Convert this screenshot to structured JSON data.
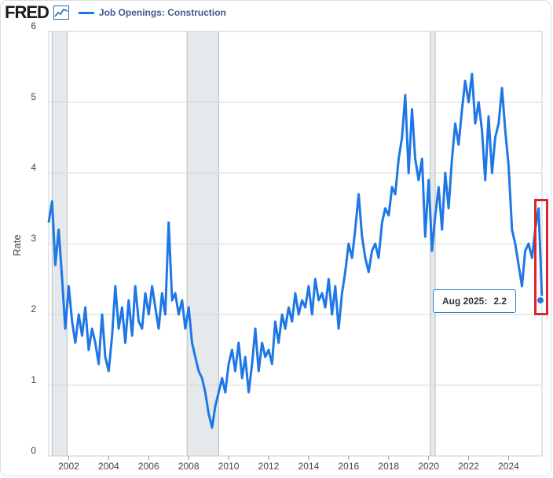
{
  "header": {
    "logo": "FRED",
    "logo_icon": "line-chart-icon",
    "series_label": "Job Openings: Construction"
  },
  "tooltip": {
    "date": "Aug 2025:",
    "value": "2.2"
  },
  "colors": {
    "series": "#1f77e6",
    "recession": "#e6e9ec",
    "grid": "#d6d9dd",
    "highlight": "#e0242c"
  },
  "chart_data": {
    "type": "line",
    "title": "",
    "xlabel": "",
    "ylabel": "Rate",
    "xlim": [
      2001.0,
      2025.67
    ],
    "ylim": [
      0,
      6
    ],
    "y_ticks": [
      "0",
      "1",
      "2",
      "3",
      "4",
      "5",
      "6"
    ],
    "x_ticks": [
      "2002",
      "2004",
      "2006",
      "2008",
      "2010",
      "2012",
      "2014",
      "2016",
      "2018",
      "2020",
      "2022",
      "2024"
    ],
    "recessions": [
      [
        2001.17,
        2001.92
      ],
      [
        2007.92,
        2009.5
      ],
      [
        2020.08,
        2020.33
      ]
    ],
    "series": [
      {
        "name": "Job Openings: Construction",
        "x": [
          2001.0,
          2001.17,
          2001.33,
          2001.5,
          2001.67,
          2001.83,
          2002.0,
          2002.17,
          2002.33,
          2002.5,
          2002.67,
          2002.83,
          2003.0,
          2003.17,
          2003.33,
          2003.5,
          2003.67,
          2003.83,
          2004.0,
          2004.17,
          2004.33,
          2004.5,
          2004.67,
          2004.83,
          2005.0,
          2005.17,
          2005.33,
          2005.5,
          2005.67,
          2005.83,
          2006.0,
          2006.17,
          2006.33,
          2006.5,
          2006.67,
          2006.83,
          2007.0,
          2007.17,
          2007.33,
          2007.5,
          2007.67,
          2007.83,
          2008.0,
          2008.17,
          2008.33,
          2008.5,
          2008.67,
          2008.83,
          2009.0,
          2009.17,
          2009.33,
          2009.5,
          2009.67,
          2009.83,
          2010.0,
          2010.17,
          2010.33,
          2010.5,
          2010.67,
          2010.83,
          2011.0,
          2011.17,
          2011.33,
          2011.5,
          2011.67,
          2011.83,
          2012.0,
          2012.17,
          2012.33,
          2012.5,
          2012.67,
          2012.83,
          2013.0,
          2013.17,
          2013.33,
          2013.5,
          2013.67,
          2013.83,
          2014.0,
          2014.17,
          2014.33,
          2014.5,
          2014.67,
          2014.83,
          2015.0,
          2015.17,
          2015.33,
          2015.5,
          2015.67,
          2015.83,
          2016.0,
          2016.17,
          2016.33,
          2016.5,
          2016.67,
          2016.83,
          2017.0,
          2017.17,
          2017.33,
          2017.5,
          2017.67,
          2017.83,
          2018.0,
          2018.17,
          2018.33,
          2018.5,
          2018.67,
          2018.83,
          2019.0,
          2019.17,
          2019.33,
          2019.5,
          2019.67,
          2019.83,
          2020.0,
          2020.17,
          2020.33,
          2020.5,
          2020.67,
          2020.83,
          2021.0,
          2021.17,
          2021.33,
          2021.5,
          2021.67,
          2021.83,
          2022.0,
          2022.17,
          2022.33,
          2022.5,
          2022.67,
          2022.83,
          2023.0,
          2023.17,
          2023.33,
          2023.5,
          2023.67,
          2023.83,
          2024.0,
          2024.17,
          2024.33,
          2024.5,
          2024.67,
          2024.83,
          2025.0,
          2025.17,
          2025.33,
          2025.5,
          2025.67
        ],
        "values": [
          3.3,
          3.6,
          2.7,
          3.2,
          2.5,
          1.8,
          2.4,
          1.9,
          1.6,
          2.0,
          1.7,
          2.1,
          1.5,
          1.8,
          1.6,
          1.3,
          2.0,
          1.4,
          1.2,
          1.7,
          2.4,
          1.8,
          2.1,
          1.6,
          2.2,
          1.7,
          2.4,
          1.9,
          1.8,
          2.3,
          2.0,
          2.4,
          2.1,
          1.8,
          2.3,
          2.0,
          3.3,
          2.2,
          2.3,
          2.0,
          2.2,
          1.8,
          2.1,
          1.6,
          1.4,
          1.2,
          1.1,
          0.9,
          0.6,
          0.4,
          0.7,
          0.9,
          1.1,
          0.9,
          1.3,
          1.5,
          1.2,
          1.6,
          1.1,
          1.4,
          0.9,
          1.3,
          1.8,
          1.2,
          1.6,
          1.4,
          1.5,
          1.3,
          1.9,
          1.6,
          2.0,
          1.8,
          2.1,
          1.9,
          2.3,
          2.0,
          2.2,
          2.1,
          2.4,
          2.0,
          2.5,
          2.2,
          2.3,
          2.1,
          2.5,
          2.0,
          2.4,
          1.8,
          2.3,
          2.6,
          3.0,
          2.8,
          3.2,
          3.7,
          3.1,
          2.8,
          2.6,
          2.9,
          3.0,
          2.8,
          3.3,
          3.5,
          3.4,
          3.8,
          3.7,
          4.2,
          4.5,
          5.1,
          4.0,
          4.9,
          4.2,
          3.9,
          4.2,
          3.1,
          3.9,
          2.9,
          3.4,
          3.8,
          3.2,
          4.0,
          3.5,
          4.2,
          4.7,
          4.4,
          4.9,
          5.3,
          5.0,
          5.4,
          4.7,
          5.0,
          4.6,
          3.9,
          4.8,
          4.0,
          4.5,
          4.7,
          5.2,
          4.6,
          4.1,
          3.2,
          3.0,
          2.7,
          2.4,
          2.9,
          3.0,
          2.8,
          3.2,
          3.5,
          2.2
        ]
      }
    ]
  }
}
